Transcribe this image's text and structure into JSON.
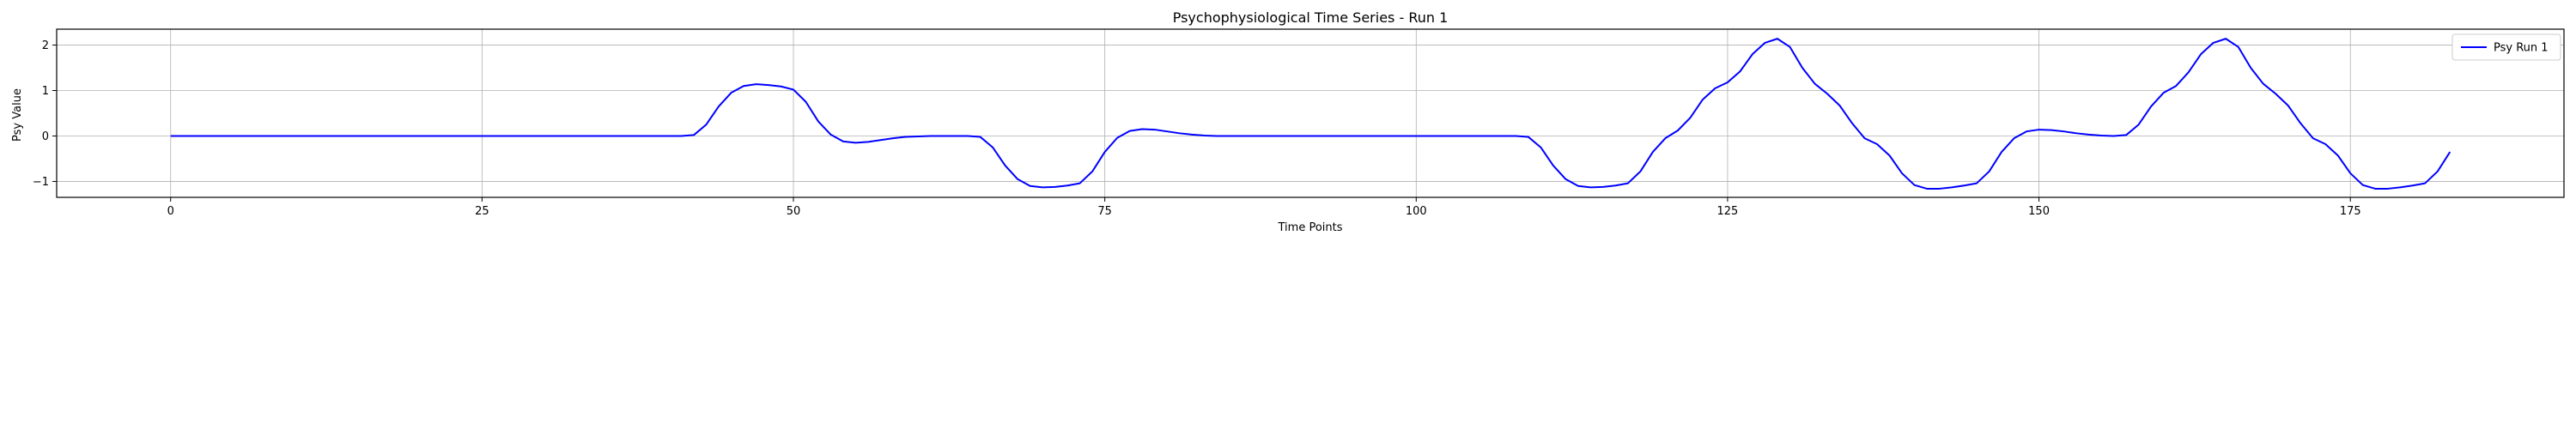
{
  "chart_data": {
    "type": "line",
    "title": "Psychophysiological Time Series - Run 1",
    "xlabel": "Time Points",
    "ylabel": "Psy Value",
    "xlim": [
      -9.15,
      192.15
    ],
    "ylim": [
      -1.35,
      2.35
    ],
    "x_ticks": [
      0,
      25,
      50,
      75,
      100,
      125,
      150,
      175
    ],
    "y_ticks": [
      -1,
      0,
      1,
      2
    ],
    "grid": true,
    "legend": {
      "position": "top-right",
      "entries": [
        "Psy Run 1"
      ]
    },
    "series": [
      {
        "name": "Psy Run 1",
        "color": "#0000ff",
        "x": [
          0,
          1,
          2,
          3,
          4,
          5,
          6,
          7,
          8,
          9,
          10,
          11,
          12,
          13,
          14,
          15,
          16,
          17,
          18,
          19,
          20,
          21,
          22,
          23,
          24,
          25,
          26,
          27,
          28,
          29,
          30,
          31,
          32,
          33,
          34,
          35,
          36,
          37,
          38,
          39,
          40,
          41,
          42,
          43,
          44,
          45,
          46,
          47,
          48,
          49,
          50,
          51,
          52,
          53,
          54,
          55,
          56,
          57,
          58,
          59,
          60,
          61,
          62,
          63,
          64,
          65,
          66,
          67,
          68,
          69,
          70,
          71,
          72,
          73,
          74,
          75,
          76,
          77,
          78,
          79,
          80,
          81,
          82,
          83,
          84,
          85,
          86,
          87,
          88,
          89,
          90,
          91,
          92,
          93,
          94,
          95,
          96,
          97,
          98,
          99,
          100,
          101,
          102,
          103,
          104,
          105,
          106,
          107,
          108,
          109,
          110,
          111,
          112,
          113,
          114,
          115,
          116,
          117,
          118,
          119,
          120,
          121,
          122,
          123,
          124,
          125,
          126,
          127,
          128,
          129,
          130,
          131,
          132,
          133,
          134,
          135,
          136,
          137,
          138,
          139,
          140,
          141,
          142,
          143,
          144,
          145,
          146,
          147,
          148,
          149,
          150,
          151,
          152,
          153,
          154,
          155,
          156,
          157,
          158,
          159,
          160,
          161,
          162,
          163,
          164,
          165,
          166,
          167,
          168,
          169,
          170,
          171,
          172,
          173,
          174,
          175,
          176,
          177,
          178,
          179,
          180,
          181,
          182,
          183
        ],
        "y": [
          0,
          0,
          0,
          0,
          0,
          0,
          0,
          0,
          0,
          0,
          0,
          0,
          0,
          0,
          0,
          0,
          0,
          0,
          0,
          0,
          0,
          0,
          0,
          0,
          0,
          0,
          0,
          0,
          0,
          0,
          0,
          0,
          0,
          0,
          0,
          0,
          0,
          0,
          0,
          0,
          0,
          0,
          0.02,
          0.25,
          0.65,
          0.95,
          1.1,
          1.14,
          1.12,
          1.09,
          1.02,
          0.75,
          0.32,
          0.03,
          -0.12,
          -0.15,
          -0.13,
          -0.09,
          -0.05,
          -0.02,
          -0.01,
          0,
          0,
          0,
          0,
          -0.02,
          -0.25,
          -0.65,
          -0.95,
          -1.1,
          -1.13,
          -1.12,
          -1.09,
          -1.04,
          -0.78,
          -0.35,
          -0.04,
          0.11,
          0.15,
          0.14,
          0.1,
          0.06,
          0.03,
          0.01,
          0,
          0,
          0,
          0,
          0,
          0,
          0,
          0,
          0,
          0,
          0,
          0,
          0,
          0,
          0,
          0,
          0,
          0,
          0,
          0,
          0,
          0,
          0,
          0,
          0,
          -0.02,
          -0.25,
          -0.65,
          -0.95,
          -1.1,
          -1.13,
          -1.12,
          -1.09,
          -1.04,
          -0.78,
          -0.35,
          -0.05,
          0.12,
          0.4,
          0.8,
          1.05,
          1.18,
          1.42,
          1.8,
          2.05,
          2.14,
          1.96,
          1.5,
          1.15,
          0.93,
          0.67,
          0.28,
          -0.05,
          -0.18,
          -0.43,
          -0.82,
          -1.08,
          -1.16,
          -1.16,
          -1.13,
          -1.09,
          -1.04,
          -0.78,
          -0.35,
          -0.05,
          0.1,
          0.14,
          0.13,
          0.1,
          0.06,
          0.03,
          0.01,
          0,
          0.02,
          0.25,
          0.65,
          0.95,
          1.1,
          1.4,
          1.8,
          2.05,
          2.14,
          1.96,
          1.5,
          1.15,
          0.93,
          0.67,
          0.28,
          -0.05,
          -0.18,
          -0.43,
          -0.82,
          -1.08,
          -1.16,
          -1.16,
          -1.13,
          -1.09,
          -1.04,
          -0.78,
          -0.35
        ]
      }
    ]
  }
}
